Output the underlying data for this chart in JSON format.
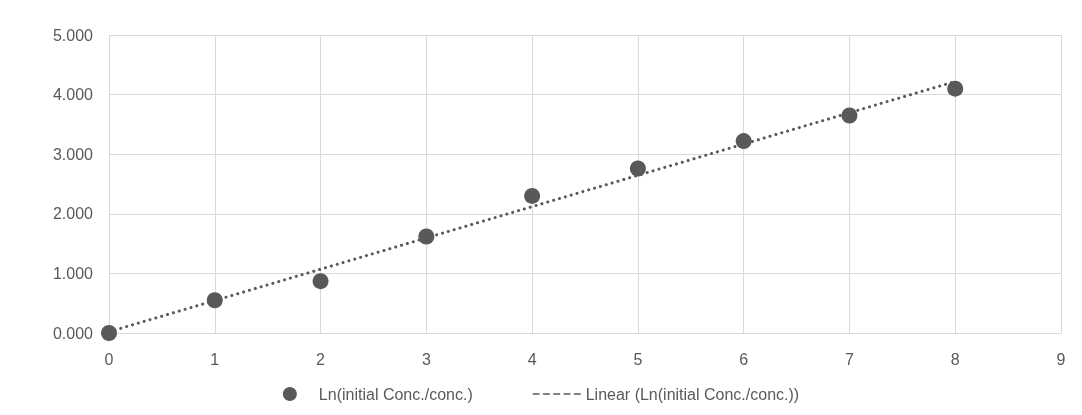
{
  "chart_data": {
    "type": "scatter",
    "x": [
      0,
      1,
      2,
      3,
      4,
      5,
      6,
      7,
      8
    ],
    "series": [
      {
        "name": "Ln(initial Conc./conc.)",
        "color": "#595959",
        "marker": "circle",
        "values": [
          0,
          0.55,
          0.87,
          1.62,
          2.3,
          2.76,
          3.22,
          3.65,
          4.1
        ]
      },
      {
        "name": "Linear (Ln(initial Conc./conc.))",
        "type": "line",
        "color": "#595959",
        "marker": "none",
        "line_style": "dotted",
        "x": [
          0,
          8
        ],
        "values": [
          0.02,
          4.22
        ]
      }
    ],
    "xlim": [
      0,
      9
    ],
    "xticks": [
      0,
      1,
      2,
      3,
      4,
      5,
      6,
      7,
      8,
      9
    ],
    "ylim": [
      0,
      5
    ],
    "yticks": [
      {
        "value": 0,
        "label": "0.000"
      },
      {
        "value": 1,
        "label": "1.000"
      },
      {
        "value": 2,
        "label": "2.000"
      },
      {
        "value": 3,
        "label": "3.000"
      },
      {
        "value": 4,
        "label": "4.000"
      },
      {
        "value": 5,
        "label": "5.000"
      }
    ],
    "grid": true,
    "legend": "bottom"
  }
}
